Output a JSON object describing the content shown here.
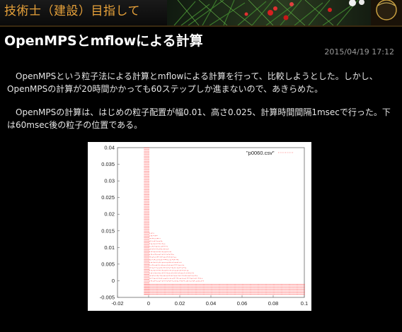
{
  "header": {
    "blog_title": "技術士（建設）目指して"
  },
  "post": {
    "title": "OpenMPSとmflowによる計算",
    "date": "2015/04/19 17:12",
    "paragraphs": [
      "　OpenMPSという粒子法による計算とmflowによる計算を行って、比較しようとした。しかし、OpenMPSの計算が20時間かかっても60ステップしか進まないので、あきらめた。",
      "　OpenMPSの計算は、はじめの粒子配置が幅0.01、高さ0.025、計算時間間隔1msecで行った。下は60msec後の粒子の位置である。"
    ]
  },
  "colors": {
    "accent": "#e8a23a",
    "particle": "#ff6a6a"
  },
  "chart_data": {
    "type": "scatter",
    "legend": [
      "\"p0060.csv\""
    ],
    "legend_position": "top-right",
    "xlim": [
      -0.02,
      0.1
    ],
    "ylim": [
      -0.005,
      0.04
    ],
    "x_ticks": [
      "-0.02",
      "0",
      "0.02",
      "0.04",
      "0.06",
      "0.08",
      "0.1"
    ],
    "y_ticks": [
      "-0.005",
      "0",
      "0.005",
      "0.01",
      "0.015",
      "0.02",
      "0.025",
      "0.03",
      "0.035",
      "0.04"
    ],
    "x_tick_values": [
      -0.02,
      0,
      0.02,
      0.04,
      0.06,
      0.08,
      0.1
    ],
    "y_tick_values": [
      -0.005,
      0,
      0.005,
      0.01,
      0.015,
      0.02,
      0.025,
      0.03,
      0.035,
      0.04
    ],
    "regions": [
      {
        "kind": "wall",
        "x": [
          -0.003,
          0.0
        ],
        "y": [
          -0.004,
          0.04
        ]
      },
      {
        "kind": "floor",
        "x": [
          -0.003,
          0.1
        ],
        "y": [
          -0.004,
          -0.001
        ]
      },
      {
        "kind": "fluid",
        "profile_x": [
          0.0,
          0.005,
          0.01,
          0.015,
          0.02,
          0.025,
          0.03,
          0.035
        ],
        "profile_y": [
          0.015,
          0.014,
          0.0115,
          0.0085,
          0.006,
          0.0035,
          0.002,
          0.0006
        ]
      }
    ],
    "grid": false
  }
}
